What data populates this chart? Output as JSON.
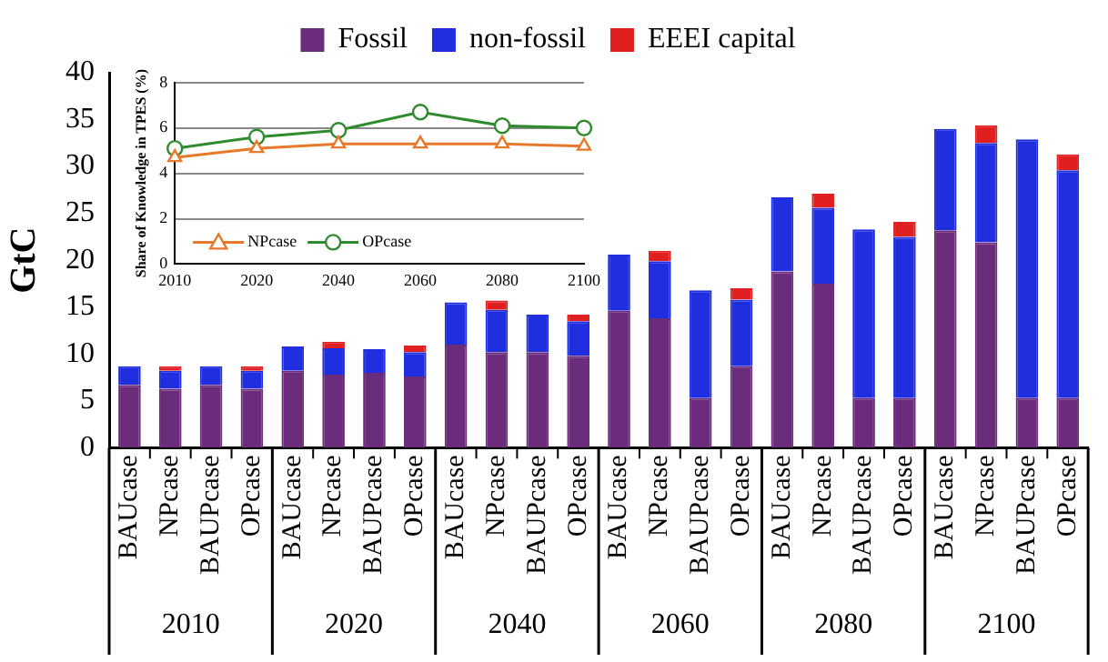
{
  "chart_data": [
    {
      "type": "bar",
      "stacked": true,
      "ylabel": "GtC",
      "legend": "top",
      "grid": false,
      "categories": [
        "BAUcase",
        "NPcase",
        "BAUPcase",
        "OPcase",
        "BAUcase",
        "NPcase",
        "BAUPcase",
        "OPcase",
        "BAUcase",
        "NPcase",
        "BAUPcase",
        "OPcase",
        "BAUcase",
        "NPcase",
        "BAUPcase",
        "OPcase",
        "BAUcase",
        "NPcase",
        "BAUPcase",
        "OPcase",
        "BAUcase",
        "NPcase",
        "BAUPcase",
        "OPcase"
      ],
      "series": [
        {
          "name": "Fossil",
          "color": "#6b2d7b",
          "values": [
            6.7,
            6.3,
            6.7,
            6.3,
            8.2,
            7.8,
            8.0,
            7.6,
            11.0,
            10.2,
            10.2,
            9.8,
            14.6,
            13.8,
            5.3,
            8.7,
            18.8,
            17.5,
            5.3,
            5.3,
            23.2,
            21.9,
            5.3,
            5.3
          ]
        },
        {
          "name": "non-fossil",
          "color": "#1f2fe0",
          "values": [
            2.0,
            1.9,
            2.0,
            1.9,
            2.6,
            2.8,
            2.5,
            2.6,
            4.5,
            4.5,
            4.0,
            3.7,
            6.0,
            6.1,
            11.5,
            7.1,
            7.9,
            8.1,
            18.0,
            17.2,
            10.8,
            10.6,
            27.6,
            24.3
          ]
        },
        {
          "name": "EEEI capital",
          "color": "#e02020",
          "values": [
            null,
            0.5,
            null,
            0.5,
            null,
            0.7,
            null,
            0.7,
            null,
            1.0,
            null,
            0.7,
            null,
            1.1,
            null,
            1.2,
            null,
            1.5,
            null,
            1.6,
            null,
            1.9,
            null,
            1.7
          ]
        }
      ],
      "ylim": [
        0,
        40
      ],
      "yticks": [
        0,
        5,
        10,
        15,
        20,
        25,
        30,
        35,
        40
      ],
      "annotations": [
        "2010",
        "2020",
        "2040",
        "2060",
        "2080",
        "2100"
      ]
    },
    {
      "type": "line",
      "ylabel": "Share of Knowledge in TPES (%)",
      "legend": "bottom left",
      "grid": "y",
      "categories": [
        "2010",
        "2020",
        "2040",
        "2060",
        "2080",
        "2100"
      ],
      "series": [
        {
          "name": "NPcase",
          "color": "#e8782a",
          "marker": "triangle",
          "values": [
            4.7,
            5.1,
            5.3,
            5.3,
            5.3,
            5.2
          ]
        },
        {
          "name": "OPcase",
          "color": "#2e8b2e",
          "marker": "circle",
          "values": [
            5.1,
            5.6,
            5.9,
            6.7,
            6.1,
            6.0
          ]
        }
      ],
      "ylim": [
        0,
        8
      ],
      "yticks": [
        0,
        2,
        4,
        6,
        8
      ]
    }
  ]
}
